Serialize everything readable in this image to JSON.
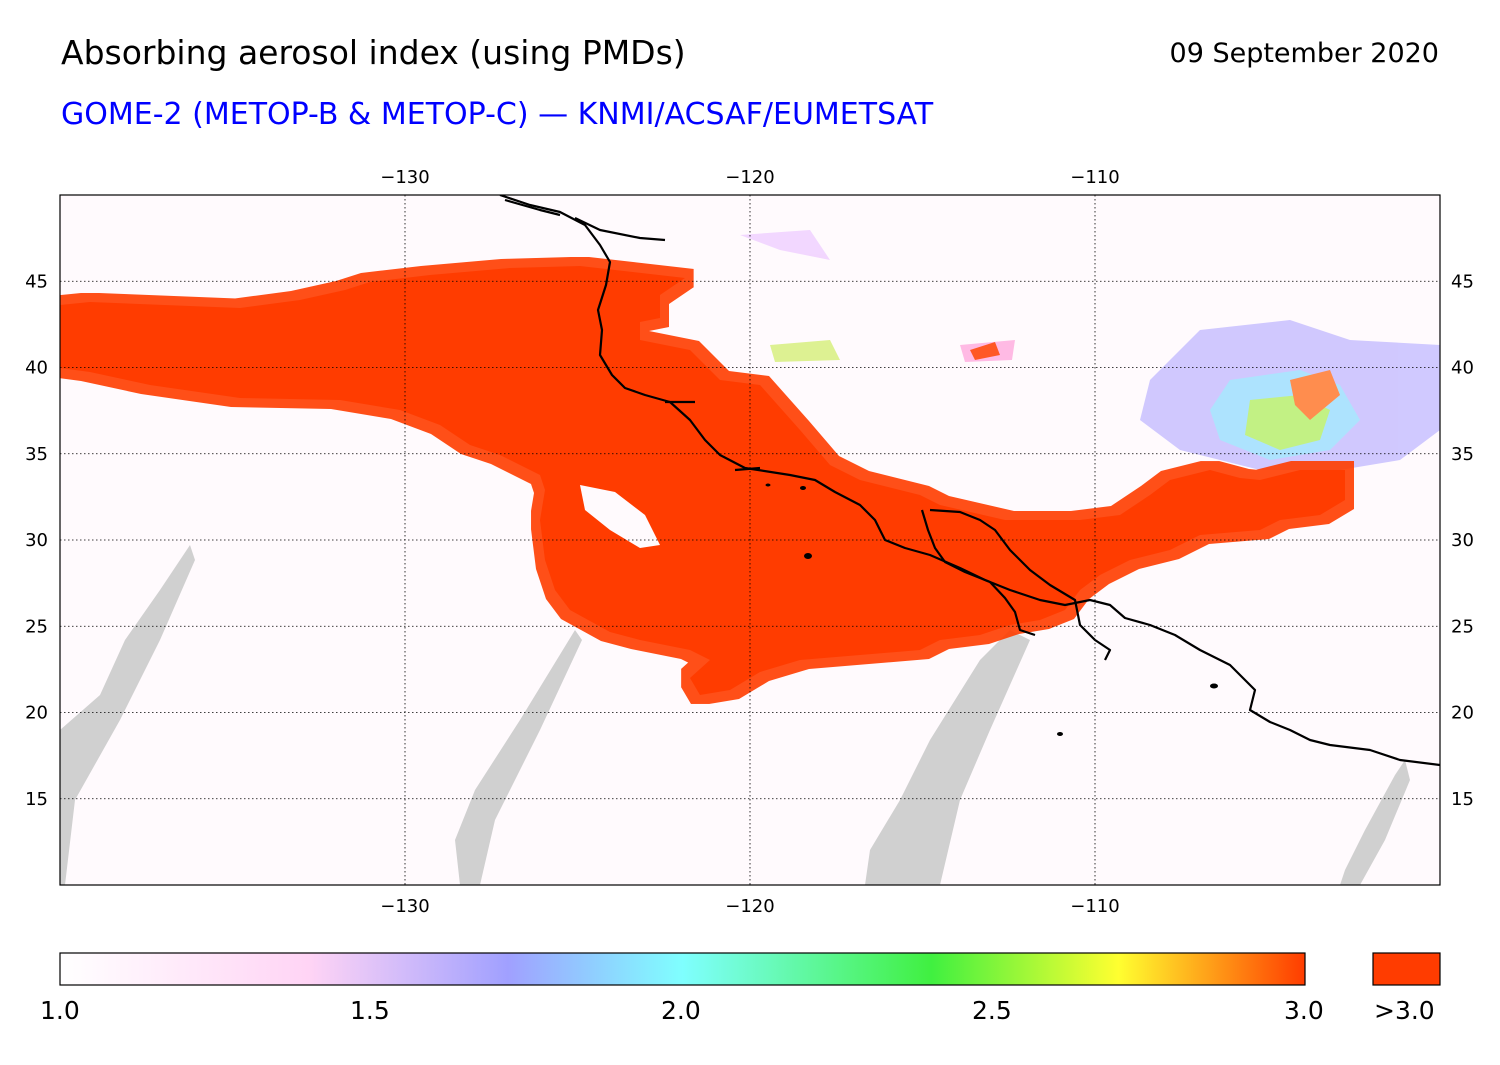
{
  "header": {
    "title": "Absorbing aerosol index (using PMDs)",
    "date": "09 September 2020",
    "subtitle": "GOME-2 (METOP-B & METOP-C) — KNMI/ACSAF/EUMETSAT",
    "subtitle_color": "#0000ff"
  },
  "map": {
    "lon_range": [
      -140,
      -100
    ],
    "lat_range": [
      10,
      50
    ],
    "lon_ticks": [
      -130,
      -120,
      -110
    ],
    "lat_ticks": [
      15,
      20,
      25,
      30,
      35,
      40,
      45
    ],
    "lon_tick_labels": [
      "−130",
      "−120",
      "−110"
    ],
    "lat_tick_labels": [
      "15",
      "20",
      "25",
      "30",
      "35",
      "40",
      "45"
    ],
    "gridlines": true,
    "smoke_color": "#ff3c00",
    "coastline_color": "#000000",
    "no_data_color": "#d0d0d0"
  },
  "colorbar": {
    "stops": [
      "#ffffff",
      "#ffd4f5",
      "#a0a0ff",
      "#7fffff",
      "#40f040",
      "#ffff30",
      "#ff3c00"
    ],
    "tick_labels": [
      "1.0",
      "1.5",
      "2.0",
      "2.5",
      "3.0"
    ],
    "over_label": ">3.0",
    "over_color": "#ff3c00"
  }
}
